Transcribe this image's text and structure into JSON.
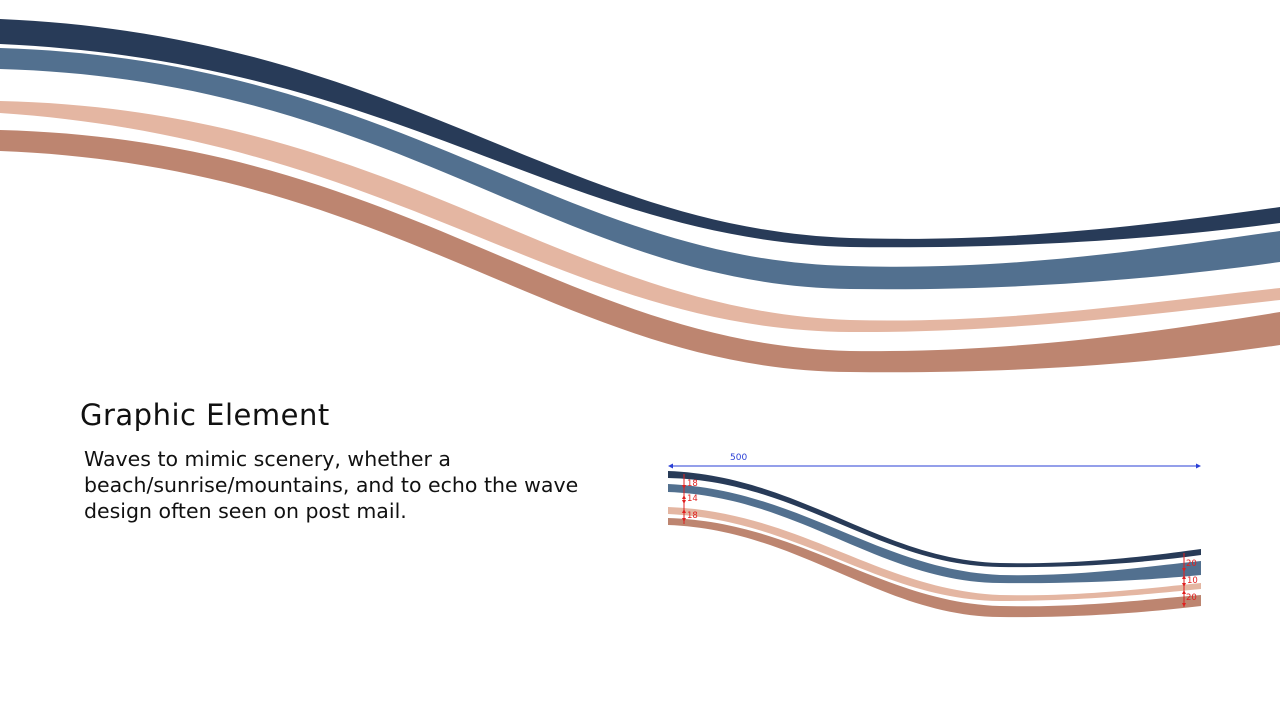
{
  "slide": {
    "title": "Graphic Element",
    "description": "Waves to mimic scenery, whether a beach/sunrise/mountains, and to echo the wave design often seen on post mail."
  },
  "colors": {
    "navy": "#283b58",
    "steel_blue": "#52708f",
    "peach": "#e4b6a2",
    "terracotta": "#bd8570",
    "dimension_blue": "#2a3fd6",
    "dimension_red": "#e02020"
  },
  "spec_diagram": {
    "total_width_label": "500",
    "left_gap_labels": [
      "18",
      "14",
      "18"
    ],
    "right_gap_labels": [
      "20",
      "10",
      "20"
    ]
  }
}
